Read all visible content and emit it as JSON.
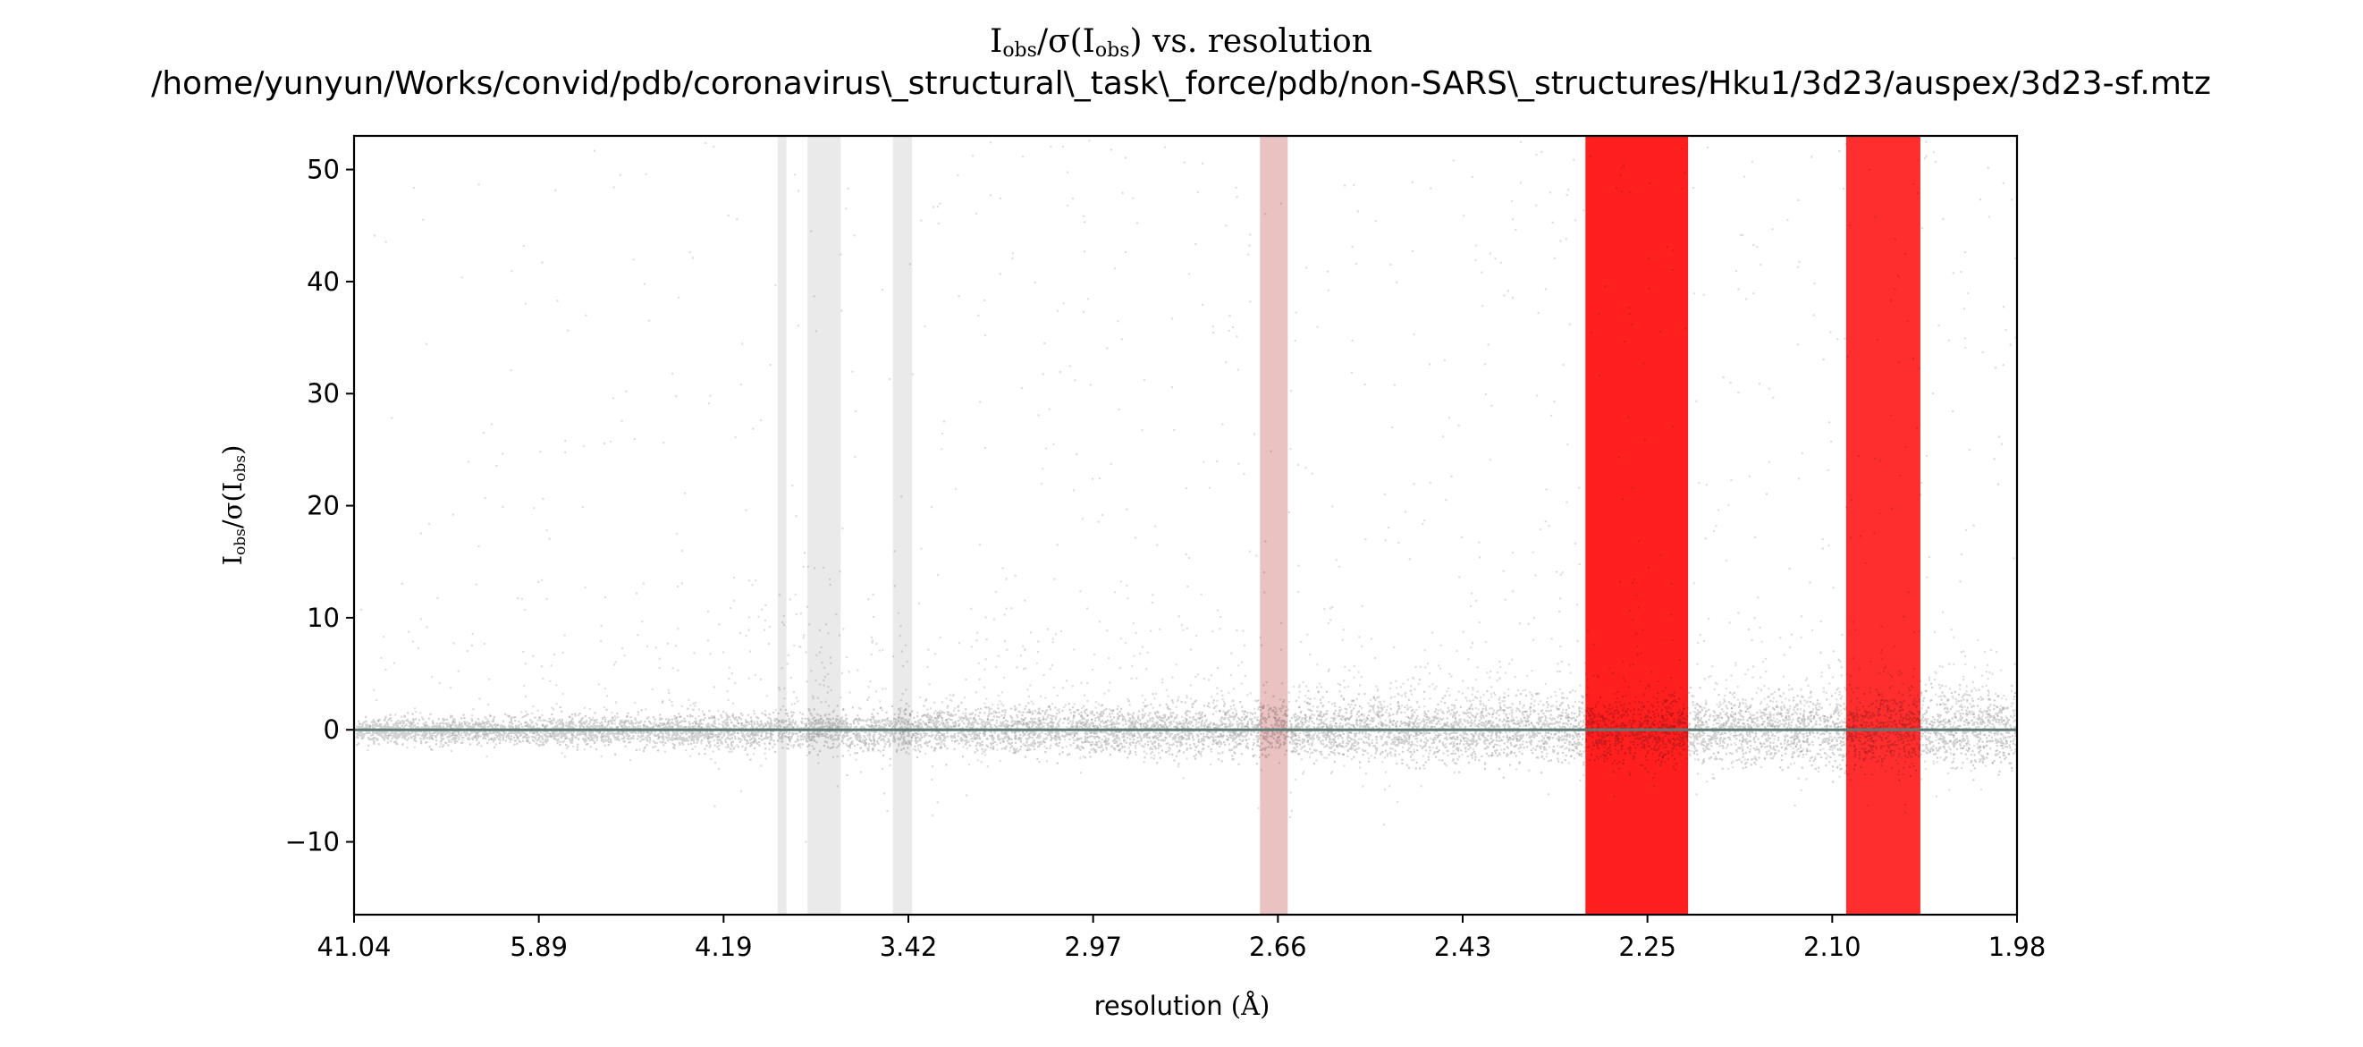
{
  "chart_data": {
    "type": "scatter",
    "title": "I_obs/σ(I_obs) vs. resolution",
    "title_parts": {
      "main": "I",
      "sub": "obs",
      "mid": "/σ(I",
      "sub2": "obs",
      "end": ") vs. resolution"
    },
    "subtitle": "/home/yunyun/Works/convid/pdb/coronavirus\\_structural\\_task\\_force/pdb/non-SARS\\_structures/Hku1/3d23/auspex/3d23-sf.mtz",
    "xlabel": "resolution (Å)",
    "xlabel_parts": {
      "main": "resolution ",
      "unit": "(Å)"
    },
    "ylabel": "I_obs/σ(I_obs)",
    "ylabel_parts": {
      "main": "I",
      "sub": "obs",
      "mid": "/σ(I",
      "sub2": "obs",
      "end": ")"
    },
    "x_axis_scale": "reciprocal-squared resolution (1/d²), labelled in Å",
    "x_tick_labels": [
      "41.04",
      "5.89",
      "4.19",
      "3.42",
      "2.97",
      "2.66",
      "2.43",
      "2.25",
      "2.10",
      "1.98"
    ],
    "y_ticks": [
      -10,
      0,
      10,
      20,
      30,
      40,
      50
    ],
    "y_tick_labels": [
      "−10",
      "0",
      "10",
      "20",
      "30",
      "40",
      "50"
    ],
    "ylim": [
      -16.5,
      53.0
    ],
    "zero_line": {
      "y": 0,
      "color": "#5f7a76"
    },
    "point_color": "#000000",
    "ice_ring_bands": [
      {
        "d_low": 3.91,
        "d_high": 3.87,
        "color": "#d9d9d9",
        "opacity": 0.55,
        "spike_max": 18
      },
      {
        "d_low": 3.78,
        "d_high": 3.65,
        "color": "#d9d9d9",
        "opacity": 0.55,
        "spike_max": 17
      },
      {
        "d_low": 3.47,
        "d_high": 3.41,
        "color": "#d9d9d9",
        "opacity": 0.55,
        "spike_max": 11
      },
      {
        "d_low": 2.68,
        "d_high": 2.64,
        "color": "#d99090",
        "opacity": 0.55,
        "spike_max": 6
      },
      {
        "d_low": 2.3,
        "d_high": 2.21,
        "color": "#ff0000",
        "opacity": 0.88,
        "spike_max": 22
      },
      {
        "d_low": 2.09,
        "d_high": 2.04,
        "color": "#ff0000",
        "opacity": 0.82,
        "spike_max": 10
      }
    ],
    "other_spikes": [
      {
        "d": 4.35,
        "max": 4
      },
      {
        "d": 3.3,
        "max": 5
      },
      {
        "d": 2.52,
        "max": 4
      },
      {
        "d": 2.49,
        "max": 6
      },
      {
        "d": 2.14,
        "max": 4
      }
    ],
    "grid": false,
    "legend": "none"
  }
}
